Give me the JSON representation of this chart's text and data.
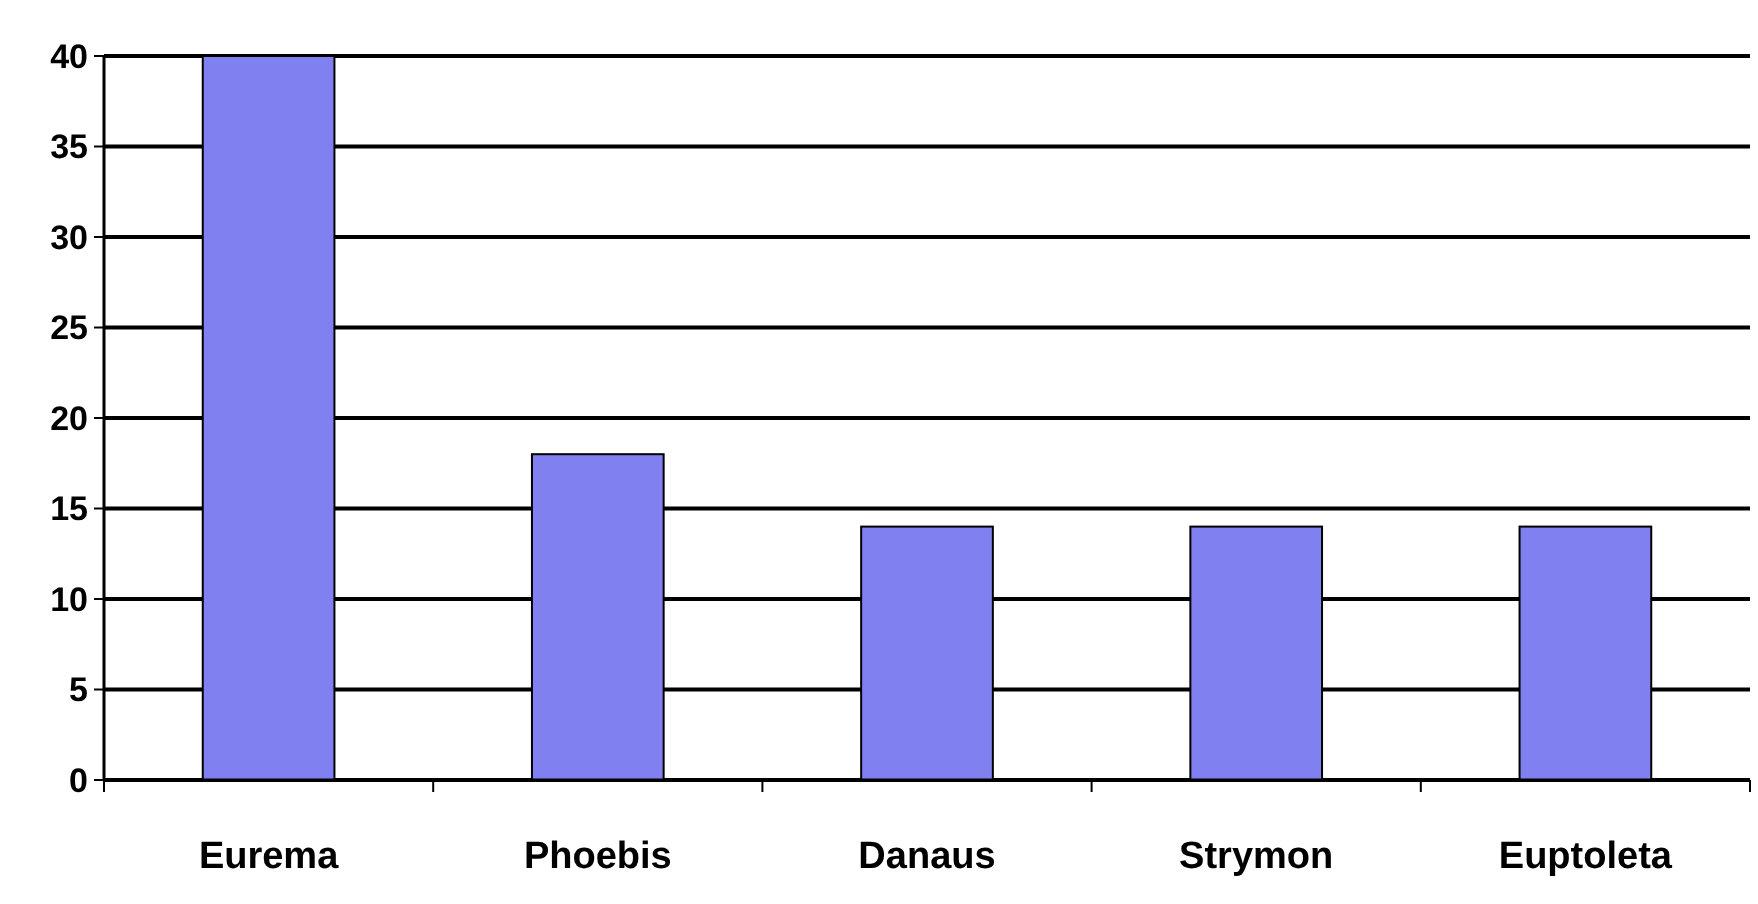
{
  "chart_data": {
    "type": "bar",
    "categories": [
      "Eurema",
      "Phoebis",
      "Danaus",
      "Strymon",
      "Euptoleta"
    ],
    "values": [
      40,
      18,
      14,
      14,
      14
    ],
    "color": "#8080f0",
    "ylim": [
      0,
      40
    ],
    "yticks": [
      0,
      5,
      10,
      15,
      20,
      25,
      30,
      35,
      40
    ],
    "grid": "y"
  }
}
